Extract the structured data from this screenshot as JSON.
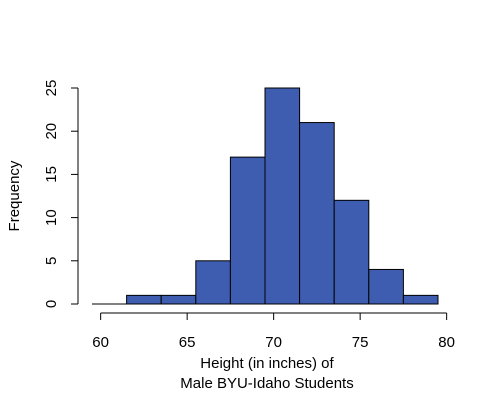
{
  "chart_data": {
    "type": "bar",
    "title": "",
    "xlabel": [
      "Height (in inches) of",
      "Male BYU-Idaho Students"
    ],
    "ylabel": "Frequency",
    "bins": [
      {
        "start": 61.5,
        "end": 63.5,
        "count": 1
      },
      {
        "start": 63.5,
        "end": 65.5,
        "count": 1
      },
      {
        "start": 65.5,
        "end": 67.5,
        "count": 5
      },
      {
        "start": 67.5,
        "end": 69.5,
        "count": 17
      },
      {
        "start": 69.5,
        "end": 71.5,
        "count": 25
      },
      {
        "start": 71.5,
        "end": 73.5,
        "count": 21
      },
      {
        "start": 73.5,
        "end": 75.5,
        "count": 12
      },
      {
        "start": 75.5,
        "end": 77.5,
        "count": 4
      },
      {
        "start": 77.5,
        "end": 79.5,
        "count": 1
      }
    ],
    "zero_line": {
      "start": 59.5,
      "end": 61.5
    },
    "xlim": [
      59.5,
      79.5
    ],
    "ylim": [
      0,
      25
    ],
    "x_ticks": [
      60,
      65,
      70,
      75,
      80
    ],
    "y_ticks": [
      0,
      5,
      10,
      15,
      20,
      25
    ],
    "bar_color": "#3f5db0",
    "edge_color": "#000000",
    "grid": false,
    "legend": "none"
  }
}
